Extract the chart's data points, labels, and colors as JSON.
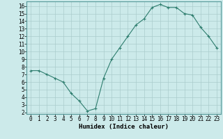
{
  "x": [
    0,
    1,
    2,
    3,
    4,
    5,
    6,
    7,
    8,
    9,
    10,
    11,
    12,
    13,
    14,
    15,
    16,
    17,
    18,
    19,
    20,
    21,
    22,
    23
  ],
  "y": [
    7.5,
    7.5,
    7.0,
    6.5,
    6.0,
    4.5,
    3.5,
    2.2,
    2.5,
    6.5,
    9.0,
    10.5,
    12.0,
    13.5,
    14.3,
    15.8,
    16.2,
    15.8,
    15.8,
    15.0,
    14.8,
    13.2,
    12.0,
    10.5
  ],
  "title": "",
  "xlabel": "Humidex (Indice chaleur)",
  "ylabel": "",
  "xlim": [
    -0.5,
    23.5
  ],
  "ylim": [
    1.8,
    16.6
  ],
  "yticks": [
    2,
    3,
    4,
    5,
    6,
    7,
    8,
    9,
    10,
    11,
    12,
    13,
    14,
    15,
    16
  ],
  "xticks": [
    0,
    1,
    2,
    3,
    4,
    5,
    6,
    7,
    8,
    9,
    10,
    11,
    12,
    13,
    14,
    15,
    16,
    17,
    18,
    19,
    20,
    21,
    22,
    23
  ],
  "line_color": "#2e7d6e",
  "marker": "+",
  "bg_color": "#cceaea",
  "grid_color": "#aacccc",
  "xlabel_fontsize": 6.5,
  "tick_fontsize": 5.5
}
